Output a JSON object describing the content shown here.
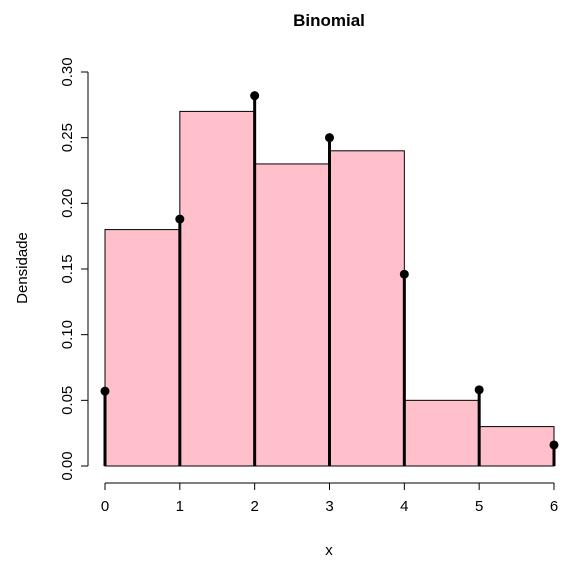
{
  "chart_data": {
    "type": "bar",
    "title": "Binomial",
    "xlabel": "x",
    "ylabel": "Densidade",
    "xlim": [
      0,
      6
    ],
    "ylim": [
      0,
      0.3
    ],
    "x_ticks": [
      "0",
      "1",
      "2",
      "3",
      "4",
      "5",
      "6"
    ],
    "y_ticks": [
      "0.00",
      "0.05",
      "0.10",
      "0.15",
      "0.20",
      "0.25",
      "0.30"
    ],
    "grid": false,
    "histogram": {
      "bins": [
        [
          0,
          1
        ],
        [
          1,
          2
        ],
        [
          2,
          3
        ],
        [
          3,
          4
        ],
        [
          4,
          5
        ],
        [
          5,
          6
        ]
      ],
      "values": [
        0.18,
        0.27,
        0.23,
        0.24,
        0.05,
        0.03
      ],
      "fill_color": "#FFC0CB",
      "border_color": "#000000"
    },
    "pmf": {
      "x": [
        0,
        1,
        2,
        3,
        4,
        5,
        6
      ],
      "y": [
        0.057,
        0.188,
        0.282,
        0.25,
        0.146,
        0.058,
        0.016
      ],
      "color": "#000000"
    }
  }
}
